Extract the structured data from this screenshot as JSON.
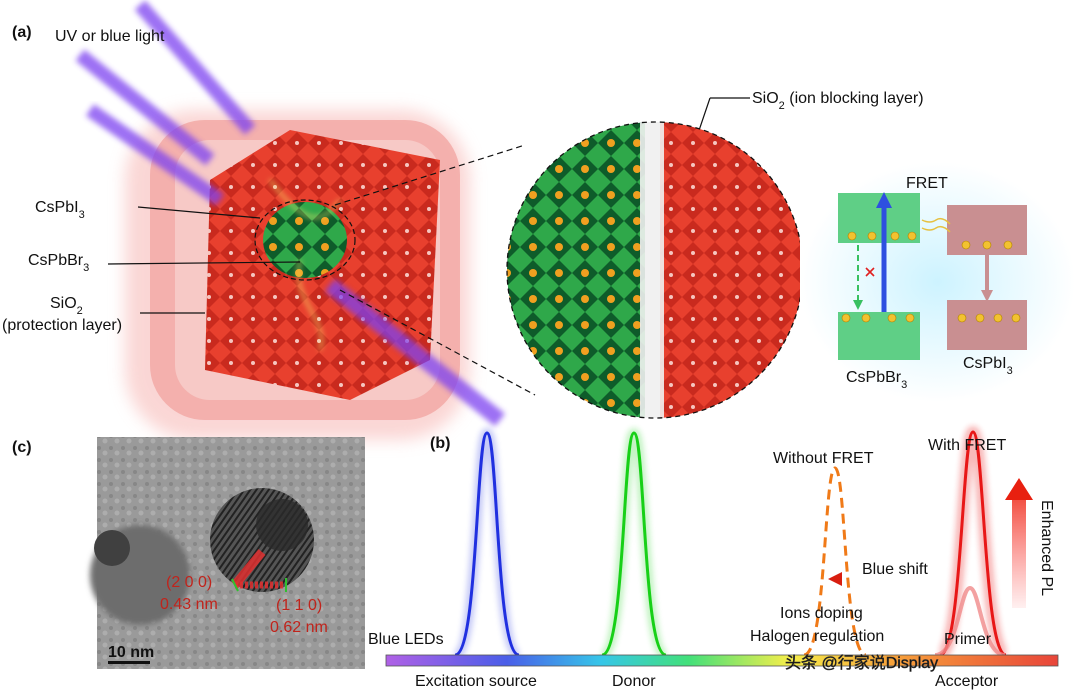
{
  "panel_a": {
    "label": "(a)",
    "light": "UV or blue light",
    "cspbi3": {
      "base": "CsPbI",
      "sub": "3"
    },
    "cspbbr3": {
      "base": "CsPbBr",
      "sub": "3"
    },
    "sio2": {
      "base": "SiO",
      "sub": "2"
    },
    "protection": "(protection layer)",
    "ion_blocking": {
      "base": "SiO",
      "sub": "2",
      "rest": " (ion blocking layer)"
    }
  },
  "fret": {
    "title": "FRET",
    "donor": {
      "base": "CsPbBr",
      "sub": "3"
    },
    "acceptor": {
      "base": "CsPbI",
      "sub": "3"
    }
  },
  "panel_c": {
    "label": "(c)",
    "plane1": "(2 0 0)",
    "d1": "0.43 nm",
    "plane2": "(1 1 0)",
    "d2": "0.62 nm",
    "scale": "10 nm"
  },
  "panel_b": {
    "label": "(b)",
    "without_fret": "Without FRET",
    "with_fret": "With FRET",
    "enhanced": "Enhanced PL",
    "blue_shift": "Blue shift",
    "ions_doping": "Ions doping",
    "halogen": "Halogen regulation",
    "primer": "Primer",
    "blue_leds": "Blue LEDs",
    "excitation": "Excitation source",
    "donor": "Donor",
    "acceptor": "Acceptor"
  },
  "watermark": "头条 @行家说Display"
}
